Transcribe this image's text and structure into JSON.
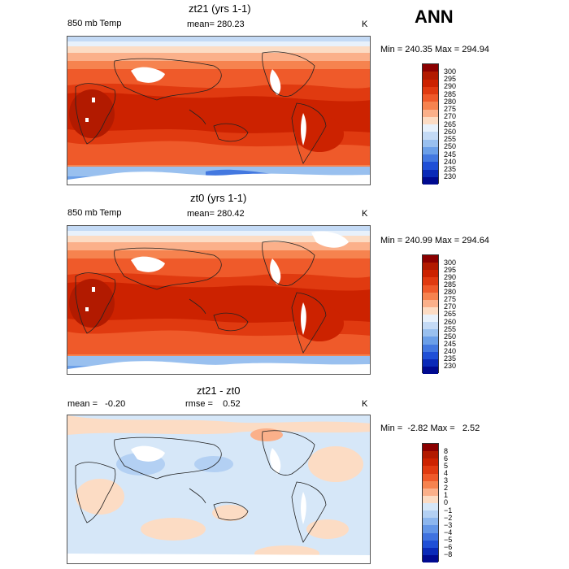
{
  "header": {
    "season": "ANN"
  },
  "panels": [
    {
      "id": "top",
      "title": "zt21 (yrs 1-1)",
      "variable": "850 mb Temp",
      "stat_text": "mean= 280.23",
      "units": "K",
      "minmax": "Min = 240.35 Max = 294.94",
      "colorbar": {
        "labels": [
          "300",
          "295",
          "290",
          "285",
          "280",
          "275",
          "270",
          "265",
          "260",
          "255",
          "250",
          "245",
          "240",
          "235",
          "230"
        ],
        "colors": [
          "#8b0000",
          "#b21a00",
          "#cc2200",
          "#e03a10",
          "#ef5a2a",
          "#f6834f",
          "#fbb08a",
          "#fcdcc4",
          "#e8f1fb",
          "#c4daf5",
          "#99c0ef",
          "#6b9fe8",
          "#4378e0",
          "#1f4fd6",
          "#0a2ab8",
          "#000a90"
        ]
      }
    },
    {
      "id": "middle",
      "title": "zt0 (yrs 1-1)",
      "variable": "850 mb Temp",
      "stat_text": "mean= 280.42",
      "units": "K",
      "minmax": "Min = 240.99 Max = 294.64",
      "colorbar": {
        "labels": [
          "300",
          "295",
          "290",
          "285",
          "280",
          "275",
          "270",
          "265",
          "260",
          "255",
          "250",
          "245",
          "240",
          "235",
          "230"
        ],
        "colors": [
          "#8b0000",
          "#b21a00",
          "#cc2200",
          "#e03a10",
          "#ef5a2a",
          "#f6834f",
          "#fbb08a",
          "#fcdcc4",
          "#e8f1fb",
          "#c4daf5",
          "#99c0ef",
          "#6b9fe8",
          "#4378e0",
          "#1f4fd6",
          "#0a2ab8",
          "#000a90"
        ]
      }
    },
    {
      "id": "bottom",
      "title": "zt21 - zt0",
      "stat_text": "mean =   -0.20",
      "rmse_text": "rmse =    0.52",
      "units": "K",
      "minmax": "Min =  -2.82 Max =   2.52",
      "colorbar": {
        "labels": [
          "8",
          "6",
          "5",
          "4",
          "3",
          "2",
          "1",
          "0",
          "−1",
          "−2",
          "−3",
          "−4",
          "−5",
          "−6",
          "−8"
        ],
        "colors": [
          "#8b0000",
          "#b21a00",
          "#cc2200",
          "#e03a10",
          "#ef5a2a",
          "#f6834f",
          "#fbb08a",
          "#fcdcc4",
          "#d6e7f8",
          "#b3d0f3",
          "#8cb6ee",
          "#6396e7",
          "#3f72df",
          "#1f4fd6",
          "#0a2ab8",
          "#000a90"
        ]
      }
    }
  ]
}
